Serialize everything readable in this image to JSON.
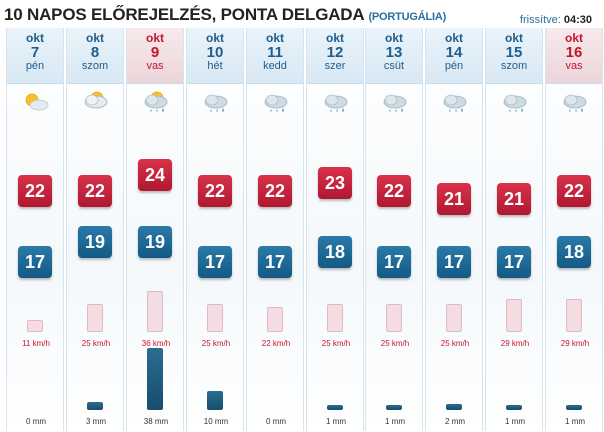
{
  "header": {
    "title": "10 NAPOS ELŐREJELZÉS, PONTA DELGADA",
    "country": "(PORTUGÁLIA)",
    "updated_label": "frissítve:",
    "updated_time": "04:30"
  },
  "days": [
    {
      "month": "okt",
      "day": "7",
      "weekday": "pén",
      "weekend": false,
      "icon": "partly-sunny-icon",
      "high": "22",
      "low": "17",
      "wind": "11 km/h",
      "wind_value": 11,
      "rain": "0 mm",
      "rain_value": 0
    },
    {
      "month": "okt",
      "day": "8",
      "weekday": "szom",
      "weekend": false,
      "icon": "cloudy-sun-icon",
      "high": "22",
      "low": "19",
      "wind": "25 km/h",
      "wind_value": 25,
      "rain": "3 mm",
      "rain_value": 3
    },
    {
      "month": "okt",
      "day": "9",
      "weekday": "vas",
      "weekend": true,
      "icon": "sun-cloud-rain-icon",
      "high": "24",
      "low": "19",
      "wind": "36 km/h",
      "wind_value": 36,
      "rain": "38 mm",
      "rain_value": 38
    },
    {
      "month": "okt",
      "day": "10",
      "weekday": "hét",
      "weekend": false,
      "icon": "cloud-rain-icon",
      "high": "22",
      "low": "17",
      "wind": "25 km/h",
      "wind_value": 25,
      "rain": "10 mm",
      "rain_value": 10
    },
    {
      "month": "okt",
      "day": "11",
      "weekday": "kedd",
      "weekend": false,
      "icon": "cloud-rain-icon",
      "high": "22",
      "low": "17",
      "wind": "22 km/h",
      "wind_value": 22,
      "rain": "0 mm",
      "rain_value": 0
    },
    {
      "month": "okt",
      "day": "12",
      "weekday": "szer",
      "weekend": false,
      "icon": "cloud-rain-icon",
      "high": "23",
      "low": "18",
      "wind": "25 km/h",
      "wind_value": 25,
      "rain": "1 mm",
      "rain_value": 1
    },
    {
      "month": "okt",
      "day": "13",
      "weekday": "csüt",
      "weekend": false,
      "icon": "cloud-rain-icon",
      "high": "22",
      "low": "17",
      "wind": "25 km/h",
      "wind_value": 25,
      "rain": "1 mm",
      "rain_value": 1
    },
    {
      "month": "okt",
      "day": "14",
      "weekday": "pén",
      "weekend": false,
      "icon": "cloud-rain-icon",
      "high": "21",
      "low": "17",
      "wind": "25 km/h",
      "wind_value": 25,
      "rain": "2 mm",
      "rain_value": 2
    },
    {
      "month": "okt",
      "day": "15",
      "weekday": "szom",
      "weekend": false,
      "icon": "cloud-rain-icon",
      "high": "21",
      "low": "17",
      "wind": "29 km/h",
      "wind_value": 29,
      "rain": "1 mm",
      "rain_value": 1
    },
    {
      "month": "okt",
      "day": "16",
      "weekday": "vas",
      "weekend": true,
      "icon": "cloud-rain-icon",
      "high": "22",
      "low": "18",
      "wind": "29 km/h",
      "wind_value": 29,
      "rain": "1 mm",
      "rain_value": 1
    }
  ],
  "colors": {
    "high_temp": "#c41e36",
    "low_temp": "#1d6894",
    "weekend_text": "#c4172c",
    "header_text": "#1f5d8c",
    "rain_bar": "#1d5a7c",
    "wind_bar": "#f3dde2"
  }
}
